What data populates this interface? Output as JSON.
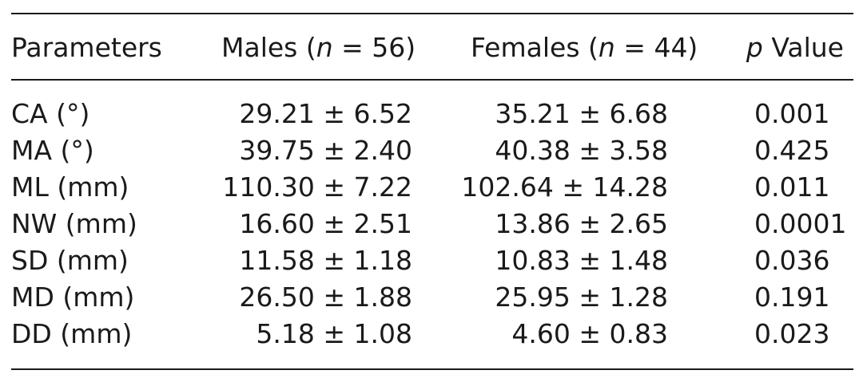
{
  "table": {
    "headers": {
      "parameters": "Parameters",
      "males_prefix": "Males (",
      "males_n": "n",
      "males_suffix": " = 56)",
      "females_prefix": "Females (",
      "females_n": "n",
      "females_suffix": " = 44)",
      "p_symbol": "p",
      "p_suffix": " Value"
    },
    "rows": [
      {
        "parameter": "CA (°)",
        "males": "29.21 ± 6.52",
        "females": "35.21 ± 6.68",
        "p": "0.001"
      },
      {
        "parameter": "MA (°)",
        "males": "39.75 ± 2.40",
        "females": "40.38 ± 3.58",
        "p": "0.425"
      },
      {
        "parameter": "ML (mm)",
        "males": "110.30 ± 7.22",
        "females": "102.64 ± 14.28",
        "p": "0.011"
      },
      {
        "parameter": "NW (mm)",
        "males": "16.60 ± 2.51",
        "females": "13.86 ± 2.65",
        "p": "0.0001"
      },
      {
        "parameter": "SD (mm)",
        "males": "11.58 ± 1.18",
        "females": "10.83 ± 1.48",
        "p": "0.036"
      },
      {
        "parameter": "MD (mm)",
        "males": "26.50 ± 1.88",
        "females": "25.95 ± 1.28",
        "p": "0.191"
      },
      {
        "parameter": "DD (mm)",
        "males": "5.18 ± 1.08",
        "females": "4.60 ± 0.83",
        "p": "0.023"
      }
    ]
  }
}
